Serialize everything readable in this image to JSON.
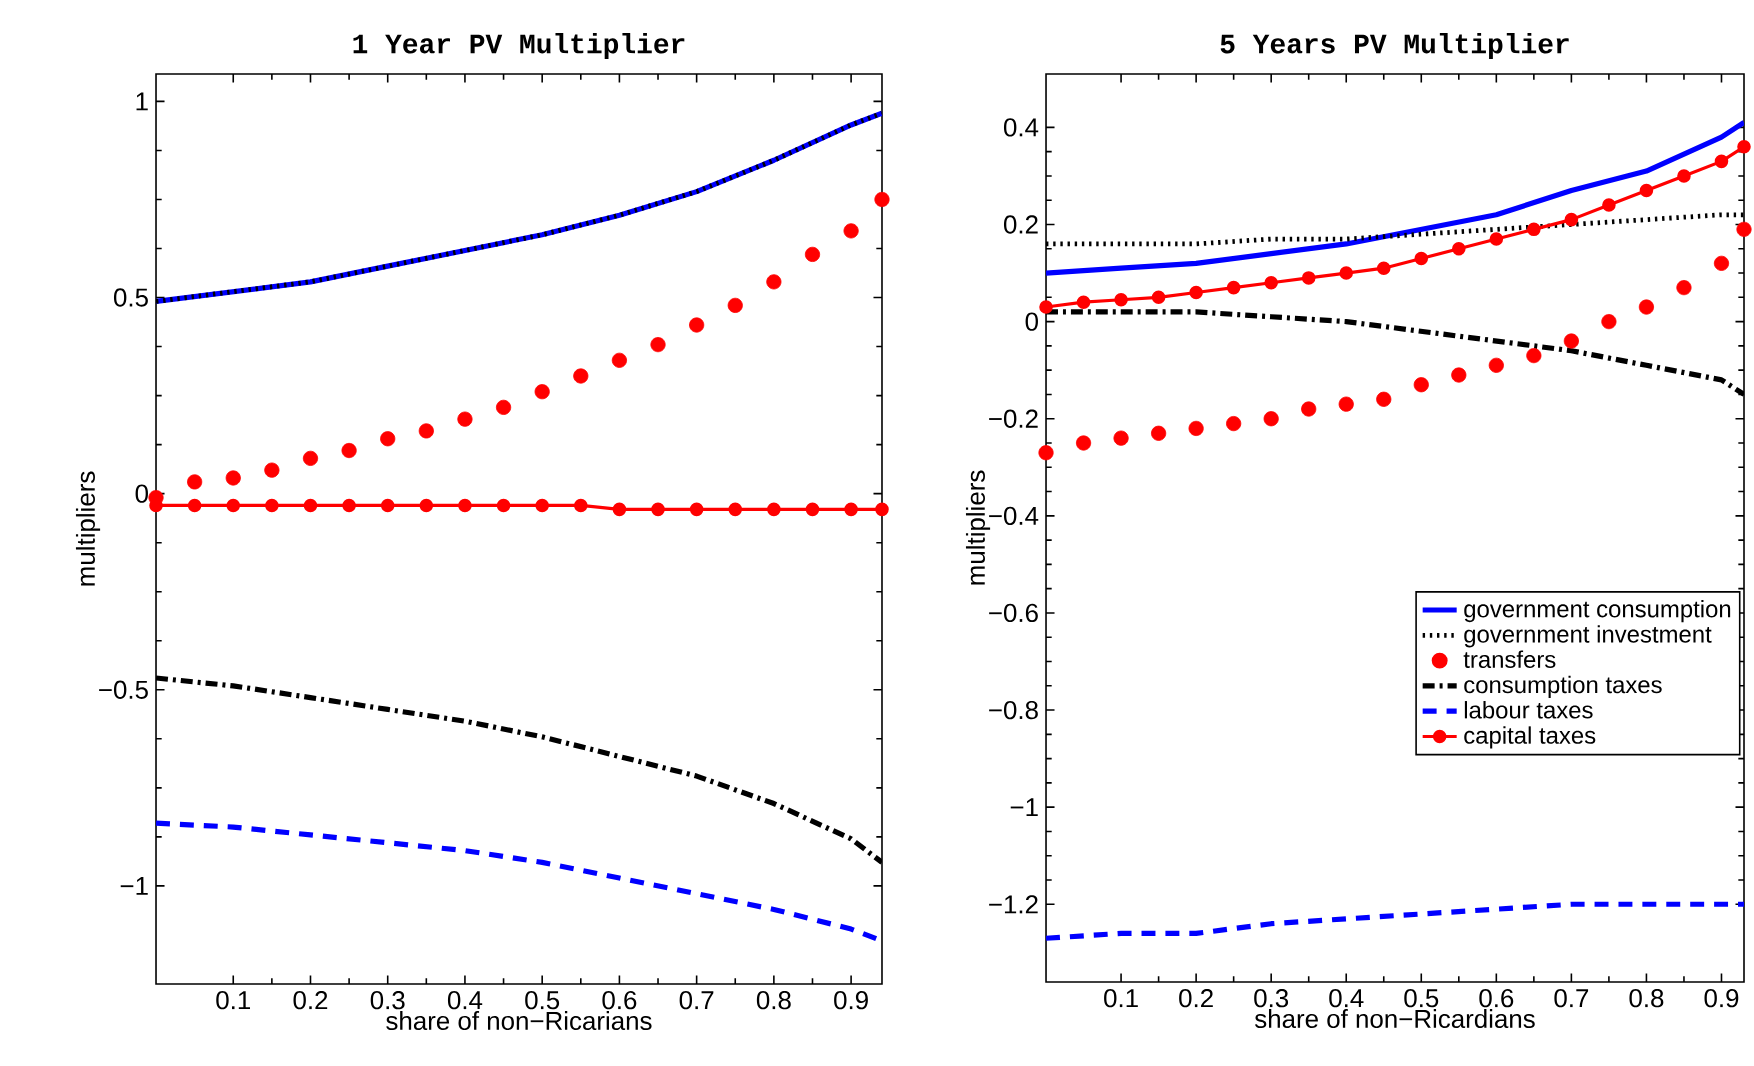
{
  "chart_data": [
    {
      "type": "line",
      "title": "1 Year PV Multiplier",
      "xlabel": "share of non−Ricarians",
      "ylabel": "multipliers",
      "xlim": [
        0,
        0.94
      ],
      "ylim": [
        -1.25,
        1.07
      ],
      "xticks": [
        0.1,
        0.2,
        0.3,
        0.4,
        0.5,
        0.6,
        0.7,
        0.8,
        0.9
      ],
      "yticks": [
        {
          "value": -1,
          "label": "−1"
        },
        {
          "value": -0.5,
          "label": "−0.5"
        },
        0,
        0.5,
        1
      ],
      "grid": false,
      "legend": false,
      "series": [
        {
          "color": "#0000ff",
          "line_style": "solid",
          "x": [
            0,
            0.1,
            0.2,
            0.3,
            0.4,
            0.5,
            0.6,
            0.7,
            0.8,
            0.9,
            0.94
          ],
          "values": [
            0.49,
            0.515,
            0.54,
            0.58,
            0.62,
            0.66,
            0.71,
            0.77,
            0.85,
            0.94,
            0.97
          ]
        },
        {
          "color": "#000000",
          "line_style": "dotted",
          "x": [
            0,
            0.1,
            0.2,
            0.3,
            0.4,
            0.5,
            0.6,
            0.7,
            0.8,
            0.9,
            0.94
          ],
          "values": [
            0.49,
            0.515,
            0.54,
            0.58,
            0.62,
            0.66,
            0.71,
            0.77,
            0.85,
            0.94,
            0.97
          ]
        },
        {
          "type": "scatter",
          "color": "#ff0000",
          "marker": "circle",
          "x": [
            0,
            0.05,
            0.1,
            0.15,
            0.2,
            0.25,
            0.3,
            0.35,
            0.4,
            0.45,
            0.5,
            0.55,
            0.6,
            0.65,
            0.7,
            0.75,
            0.8,
            0.85,
            0.9,
            0.94
          ],
          "values": [
            -0.01,
            0.03,
            0.04,
            0.06,
            0.09,
            0.11,
            0.14,
            0.16,
            0.19,
            0.22,
            0.26,
            0.3,
            0.34,
            0.38,
            0.43,
            0.48,
            0.54,
            0.61,
            0.67,
            0.75
          ]
        },
        {
          "color": "#000000",
          "line_style": "dashdot",
          "x": [
            0,
            0.1,
            0.2,
            0.3,
            0.4,
            0.5,
            0.6,
            0.7,
            0.8,
            0.9,
            0.94
          ],
          "values": [
            -0.47,
            -0.49,
            -0.52,
            -0.55,
            -0.58,
            -0.62,
            -0.67,
            -0.72,
            -0.79,
            -0.88,
            -0.94
          ]
        },
        {
          "color": "#0000ff",
          "line_style": "dashed",
          "x": [
            0,
            0.1,
            0.2,
            0.3,
            0.4,
            0.5,
            0.6,
            0.7,
            0.8,
            0.9,
            0.94
          ],
          "values": [
            -0.84,
            -0.85,
            -0.87,
            -0.89,
            -0.91,
            -0.94,
            -0.98,
            -1.02,
            -1.06,
            -1.11,
            -1.14
          ]
        },
        {
          "color": "#ff0000",
          "line_style": "solid",
          "marker": "circle",
          "x": [
            0,
            0.05,
            0.1,
            0.15,
            0.2,
            0.25,
            0.3,
            0.35,
            0.4,
            0.45,
            0.5,
            0.55,
            0.6,
            0.65,
            0.7,
            0.75,
            0.8,
            0.85,
            0.9,
            0.94
          ],
          "values": [
            -0.03,
            -0.03,
            -0.03,
            -0.03,
            -0.03,
            -0.03,
            -0.03,
            -0.03,
            -0.03,
            -0.03,
            -0.03,
            -0.03,
            -0.04,
            -0.04,
            -0.04,
            -0.04,
            -0.04,
            -0.04,
            -0.04,
            -0.04
          ]
        }
      ]
    },
    {
      "type": "line",
      "title": "5 Years PV Multiplier",
      "xlabel": "share of non−Ricardians",
      "ylabel": "multipliers",
      "xlim": [
        0,
        0.93
      ],
      "ylim": [
        -1.36,
        0.51
      ],
      "xticks": [
        0.1,
        0.2,
        0.3,
        0.4,
        0.5,
        0.6,
        0.7,
        0.8,
        0.9
      ],
      "yticks": [
        {
          "value": -1.2,
          "label": "−1.2"
        },
        {
          "value": -1,
          "label": "−1"
        },
        {
          "value": -0.8,
          "label": "−0.8"
        },
        {
          "value": -0.6,
          "label": "−0.6"
        },
        {
          "value": -0.4,
          "label": "−0.4"
        },
        {
          "value": -0.2,
          "label": "−0.2"
        },
        0,
        0.2,
        0.4
      ],
      "grid": false,
      "legend": "right",
      "series": [
        {
          "name": "government consumption",
          "color": "#0000ff",
          "line_style": "solid",
          "x": [
            0,
            0.1,
            0.2,
            0.3,
            0.4,
            0.5,
            0.6,
            0.7,
            0.8,
            0.9,
            0.93
          ],
          "values": [
            0.1,
            0.11,
            0.12,
            0.14,
            0.16,
            0.19,
            0.22,
            0.27,
            0.31,
            0.38,
            0.41
          ]
        },
        {
          "name": "government investment",
          "color": "#000000",
          "line_style": "dotted",
          "x": [
            0,
            0.1,
            0.2,
            0.3,
            0.4,
            0.5,
            0.6,
            0.7,
            0.8,
            0.9,
            0.93
          ],
          "values": [
            0.16,
            0.16,
            0.16,
            0.17,
            0.17,
            0.18,
            0.19,
            0.2,
            0.21,
            0.22,
            0.22
          ]
        },
        {
          "name": "transfers",
          "type": "scatter",
          "color": "#ff0000",
          "marker": "circle",
          "x": [
            0,
            0.05,
            0.1,
            0.15,
            0.2,
            0.25,
            0.3,
            0.35,
            0.4,
            0.45,
            0.5,
            0.55,
            0.6,
            0.65,
            0.7,
            0.75,
            0.8,
            0.85,
            0.9,
            0.93
          ],
          "values": [
            -0.27,
            -0.25,
            -0.24,
            -0.23,
            -0.22,
            -0.21,
            -0.2,
            -0.18,
            -0.17,
            -0.16,
            -0.13,
            -0.11,
            -0.09,
            -0.07,
            -0.04,
            0.0,
            0.03,
            0.07,
            0.12,
            0.19
          ]
        },
        {
          "name": "consumption taxes",
          "color": "#000000",
          "line_style": "dashdot",
          "x": [
            0,
            0.1,
            0.2,
            0.3,
            0.4,
            0.5,
            0.6,
            0.7,
            0.8,
            0.9,
            0.93
          ],
          "values": [
            0.02,
            0.02,
            0.02,
            0.01,
            0.0,
            -0.02,
            -0.04,
            -0.06,
            -0.09,
            -0.12,
            -0.15
          ]
        },
        {
          "name": "labour taxes",
          "color": "#0000ff",
          "line_style": "dashed",
          "x": [
            0,
            0.1,
            0.2,
            0.3,
            0.4,
            0.5,
            0.6,
            0.7,
            0.8,
            0.9,
            0.93
          ],
          "values": [
            -1.27,
            -1.26,
            -1.26,
            -1.24,
            -1.23,
            -1.22,
            -1.21,
            -1.2,
            -1.2,
            -1.2,
            -1.2
          ]
        },
        {
          "name": "capital taxes",
          "color": "#ff0000",
          "line_style": "solid",
          "marker": "circle",
          "x": [
            0,
            0.05,
            0.1,
            0.15,
            0.2,
            0.25,
            0.3,
            0.35,
            0.4,
            0.45,
            0.5,
            0.55,
            0.6,
            0.65,
            0.7,
            0.75,
            0.8,
            0.85,
            0.9,
            0.93
          ],
          "values": [
            0.03,
            0.04,
            0.045,
            0.05,
            0.06,
            0.07,
            0.08,
            0.09,
            0.1,
            0.11,
            0.13,
            0.15,
            0.17,
            0.19,
            0.21,
            0.24,
            0.27,
            0.3,
            0.33,
            0.36
          ]
        }
      ]
    }
  ]
}
